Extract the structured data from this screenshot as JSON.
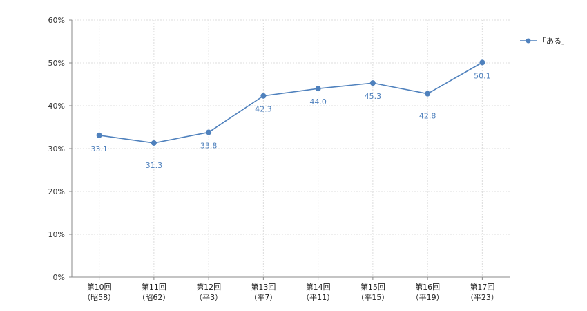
{
  "chart_data": {
    "type": "line",
    "title": "",
    "xlabel": "",
    "ylabel": "",
    "ylim": [
      0,
      60
    ],
    "y_ticks": [
      0,
      10,
      20,
      30,
      40,
      50,
      60
    ],
    "y_tick_labels": [
      "0%",
      "10%",
      "20%",
      "30%",
      "40%",
      "50%",
      "60%"
    ],
    "grid": true,
    "legend_position": "top-right",
    "categories": [
      {
        "line1": "第10回",
        "line2": "（昭58）"
      },
      {
        "line1": "第11回",
        "line2": "（昭62）"
      },
      {
        "line1": "第12回",
        "line2": "（平3）"
      },
      {
        "line1": "第13回",
        "line2": "（平7）"
      },
      {
        "line1": "第14回",
        "line2": "（平11）"
      },
      {
        "line1": "第15回",
        "line2": "（平15）"
      },
      {
        "line1": "第16回",
        "line2": "（平19）"
      },
      {
        "line1": "第17回",
        "line2": "（平23）"
      }
    ],
    "series": [
      {
        "name": "「ある」",
        "color": "#4f81bd",
        "values": [
          33.1,
          31.3,
          33.8,
          42.3,
          44.0,
          45.3,
          42.8,
          50.1
        ],
        "labels": [
          "33.1",
          "31.3",
          "33.8",
          "42.3",
          "44.0",
          "45.3",
          "42.8",
          "50.1"
        ]
      }
    ]
  }
}
